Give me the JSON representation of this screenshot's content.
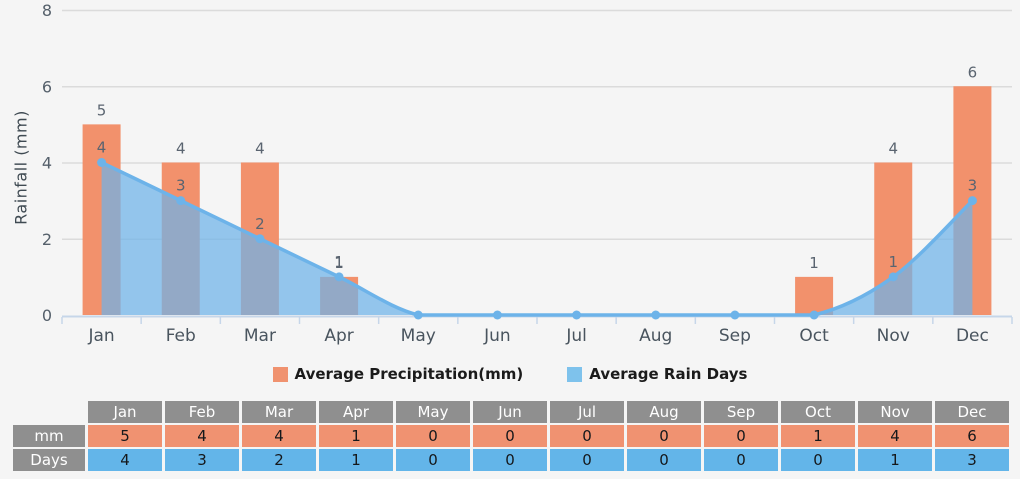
{
  "chart_data": {
    "type": "bar",
    "subtype": "bar + smoothed area-line combo",
    "title": "",
    "xlabel": "",
    "ylabel": "Rainfall (mm)",
    "ylim": [
      0,
      8
    ],
    "yticks": [
      0,
      2,
      4,
      6,
      8
    ],
    "grid": true,
    "legend_position": "bottom",
    "data_labels": "values shown above bars and line points (hidden when 0)",
    "categories": [
      "Jan",
      "Feb",
      "Mar",
      "Apr",
      "May",
      "Jun",
      "Jul",
      "Aug",
      "Sep",
      "Oct",
      "Nov",
      "Dec"
    ],
    "series": [
      {
        "name": "Average Precipitation(mm)",
        "type": "bar",
        "color": "#F2916C",
        "values": [
          5,
          4,
          4,
          1,
          0,
          0,
          0,
          0,
          0,
          1,
          4,
          6
        ]
      },
      {
        "name": "Average Rain Days",
        "type": "area-line",
        "color": "#6DB3E9",
        "area_opacity": 0.72,
        "values": [
          4,
          3,
          2,
          1,
          0,
          0,
          0,
          0,
          0,
          0,
          1,
          3
        ]
      }
    ]
  },
  "legend": {
    "items": [
      {
        "label": "Average Precipitation(mm)",
        "color": "#F0926F"
      },
      {
        "label": "Average Rain Days",
        "color": "#7EC2EC"
      }
    ]
  },
  "table": {
    "corner_label": "",
    "columns": [
      "Jan",
      "Feb",
      "Mar",
      "Apr",
      "May",
      "Jun",
      "Jul",
      "Aug",
      "Sep",
      "Oct",
      "Nov",
      "Dec"
    ],
    "rows": [
      {
        "label": "mm",
        "values": [
          5,
          4,
          4,
          1,
          0,
          0,
          0,
          0,
          0,
          1,
          4,
          6
        ],
        "cell_color": "#F09271"
      },
      {
        "label": "Days",
        "values": [
          4,
          3,
          2,
          1,
          0,
          0,
          0,
          0,
          0,
          0,
          1,
          3
        ],
        "cell_color": "#63B5E9"
      }
    ]
  },
  "colors": {
    "background": "#F5F5F5",
    "grid_line": "#DBDBDB",
    "axis_line": "#C6D6E9",
    "y_tick_label": "#55606B",
    "month_label": "#49545E",
    "data_label": "#5A6470",
    "bar": "#F2916C",
    "line": "#6DB3E9",
    "marker": "#6DB3E9",
    "legend_text": "#1B1B1B",
    "table_header_bg": "#8F8F8F",
    "table_header_text": "#FFFFFF",
    "table_value_text": "#15181B"
  }
}
